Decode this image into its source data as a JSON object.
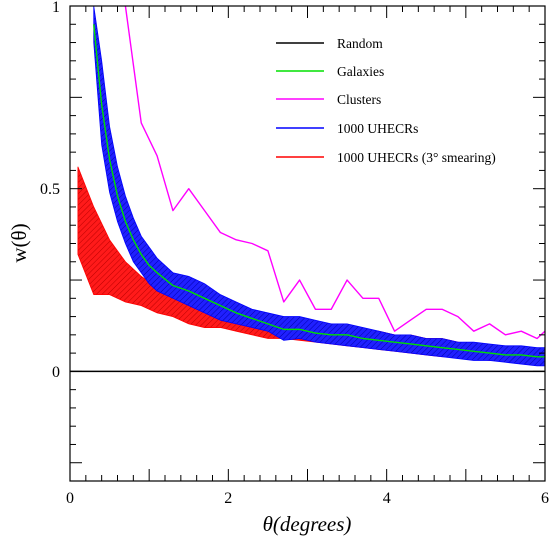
{
  "chart_data": {
    "type": "line",
    "title": "",
    "xlabel": "θ(degrees)",
    "ylabel": "w(θ)",
    "xlim": [
      0,
      6
    ],
    "ylim": [
      -0.3,
      1.0
    ],
    "x_ticks": [
      "0",
      "2",
      "4",
      "6"
    ],
    "y_ticks": [
      "0",
      "0.5",
      "1"
    ],
    "x_tick_values": [
      0,
      2,
      4,
      6
    ],
    "y_tick_values": [
      0,
      0.5,
      1
    ],
    "grid": false,
    "legend_position": "top-right",
    "legend": [
      {
        "key": "random",
        "label": "Random",
        "color": "#000000"
      },
      {
        "key": "galaxies",
        "label": "Galaxies",
        "color": "#00e000"
      },
      {
        "key": "clusters",
        "label": "Clusters",
        "color": "#ff00ff"
      },
      {
        "key": "uhecr",
        "label": "1000 UHECRs",
        "color": "#0000ff"
      },
      {
        "key": "smeared",
        "label": "1000 UHECRs (3° smearing)",
        "color": "#ff0000"
      }
    ],
    "series": [
      {
        "name": "Random",
        "kind": "line",
        "color": "#000000",
        "x": [
          0,
          6
        ],
        "y": [
          0,
          0
        ]
      },
      {
        "name": "Galaxies",
        "kind": "line",
        "color": "#00e000",
        "x": [
          0.3,
          0.4,
          0.5,
          0.6,
          0.7,
          0.8,
          0.9,
          1.0,
          1.1,
          1.3,
          1.5,
          1.7,
          1.9,
          2.1,
          2.3,
          2.5,
          2.7,
          2.9,
          3.1,
          3.3,
          3.5,
          3.7,
          3.9,
          4.1,
          4.3,
          4.5,
          4.7,
          4.9,
          5.1,
          5.3,
          5.5,
          5.7,
          5.9,
          6.0
        ],
        "y": [
          0.95,
          0.73,
          0.58,
          0.48,
          0.41,
          0.36,
          0.32,
          0.29,
          0.27,
          0.235,
          0.22,
          0.2,
          0.18,
          0.16,
          0.145,
          0.13,
          0.115,
          0.115,
          0.105,
          0.1,
          0.1,
          0.09,
          0.085,
          0.08,
          0.075,
          0.07,
          0.065,
          0.06,
          0.055,
          0.05,
          0.045,
          0.045,
          0.04,
          0.04
        ]
      },
      {
        "name": "Clusters",
        "kind": "line",
        "color": "#ff00ff",
        "x": [
          0.7,
          0.9,
          1.1,
          1.3,
          1.5,
          1.7,
          1.9,
          2.1,
          2.3,
          2.5,
          2.7,
          2.9,
          3.1,
          3.3,
          3.5,
          3.7,
          3.9,
          4.1,
          4.3,
          4.5,
          4.7,
          4.9,
          5.1,
          5.3,
          5.5,
          5.7,
          5.9,
          6.0
        ],
        "y": [
          1.0,
          0.68,
          0.59,
          0.44,
          0.5,
          0.44,
          0.38,
          0.36,
          0.35,
          0.33,
          0.19,
          0.25,
          0.17,
          0.17,
          0.25,
          0.2,
          0.2,
          0.11,
          0.14,
          0.17,
          0.17,
          0.15,
          0.11,
          0.13,
          0.1,
          0.11,
          0.09,
          0.11
        ]
      },
      {
        "name": "1000 UHECRs",
        "kind": "band",
        "color": "#0000ff",
        "x": [
          0.3,
          0.4,
          0.5,
          0.6,
          0.7,
          0.8,
          0.9,
          1.0,
          1.1,
          1.3,
          1.5,
          1.7,
          1.9,
          2.1,
          2.3,
          2.5,
          2.7,
          2.9,
          3.1,
          3.3,
          3.5,
          3.7,
          3.9,
          4.1,
          4.3,
          4.5,
          4.7,
          4.9,
          5.1,
          5.3,
          5.5,
          5.7,
          5.9,
          6.0
        ],
        "upper": [
          1.0,
          0.85,
          0.67,
          0.56,
          0.48,
          0.42,
          0.37,
          0.34,
          0.31,
          0.27,
          0.26,
          0.24,
          0.21,
          0.19,
          0.17,
          0.16,
          0.15,
          0.15,
          0.14,
          0.13,
          0.13,
          0.12,
          0.11,
          0.1,
          0.1,
          0.09,
          0.09,
          0.08,
          0.08,
          0.075,
          0.07,
          0.07,
          0.065,
          0.065
        ],
        "lower": [
          0.9,
          0.62,
          0.49,
          0.41,
          0.35,
          0.3,
          0.27,
          0.24,
          0.22,
          0.2,
          0.18,
          0.16,
          0.14,
          0.13,
          0.12,
          0.11,
          0.085,
          0.09,
          0.08,
          0.075,
          0.07,
          0.065,
          0.06,
          0.055,
          0.05,
          0.045,
          0.04,
          0.035,
          0.03,
          0.03,
          0.025,
          0.02,
          0.015,
          0.015
        ]
      },
      {
        "name": "1000 UHECRs (3° smearing)",
        "kind": "band",
        "color": "#ff0000",
        "x": [
          0.1,
          0.3,
          0.5,
          0.7,
          0.9,
          1.1,
          1.3,
          1.5,
          1.7,
          1.9,
          2.1,
          2.3,
          2.5,
          2.7,
          2.9,
          3.1,
          3.3,
          3.5,
          3.7,
          3.9,
          4.1,
          4.3,
          4.5,
          4.7,
          4.9,
          5.1,
          5.3,
          5.5,
          5.7,
          5.9,
          6.0
        ],
        "upper": [
          0.56,
          0.45,
          0.36,
          0.3,
          0.26,
          0.23,
          0.21,
          0.19,
          0.17,
          0.16,
          0.16,
          0.15,
          0.13,
          0.14,
          0.14,
          0.13,
          0.12,
          0.12,
          0.11,
          0.11,
          0.1,
          0.1,
          0.09,
          0.09,
          0.08,
          0.07,
          0.07,
          0.06,
          0.05,
          0.05,
          0.05
        ],
        "lower": [
          0.32,
          0.21,
          0.21,
          0.19,
          0.18,
          0.16,
          0.15,
          0.13,
          0.12,
          0.12,
          0.11,
          0.1,
          0.09,
          0.09,
          0.085,
          0.08,
          0.075,
          0.07,
          0.065,
          0.06,
          0.055,
          0.05,
          0.045,
          0.04,
          0.04,
          0.035,
          0.03,
          0.03,
          0.025,
          0.025,
          0.025
        ]
      }
    ]
  }
}
